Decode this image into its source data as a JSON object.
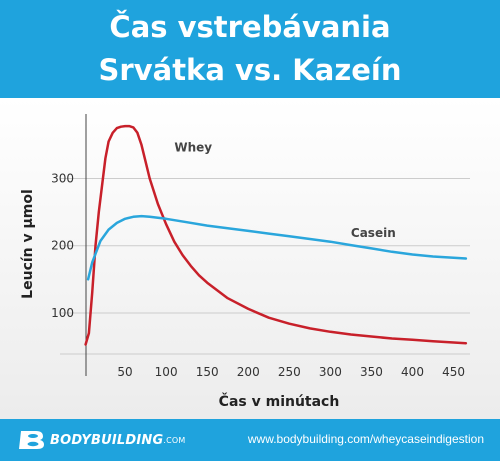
{
  "header": {
    "title_line1": "Čas vstrebávania",
    "title_line2": "Srvátka vs. Kazeín"
  },
  "footer": {
    "brand": "BODYBUILDING",
    "brand_suffix": ".COM",
    "url": "www.bodybuilding.com/wheycaseindigestion"
  },
  "colors": {
    "accent": "#1fa3dd",
    "whey": "#c8202a",
    "casein": "#2aa6dc",
    "grid": "#cccccc"
  },
  "chart_data": {
    "type": "line",
    "title": "",
    "xlabel": "Čas v minútach",
    "ylabel": "Leucín v µmol",
    "xlim": [
      0,
      470
    ],
    "ylim": [
      30,
      390
    ],
    "x_ticks": [
      50,
      100,
      150,
      200,
      250,
      300,
      350,
      400,
      450
    ],
    "y_ticks": [
      100,
      200,
      300
    ],
    "grid": "horizontal",
    "series": [
      {
        "name": "Whey",
        "color": "#c8202a",
        "label_at": [
          110,
          340
        ],
        "points": [
          [
            2,
            53
          ],
          [
            6,
            70
          ],
          [
            10,
            130
          ],
          [
            14,
            200
          ],
          [
            18,
            250
          ],
          [
            22,
            290
          ],
          [
            26,
            330
          ],
          [
            30,
            355
          ],
          [
            35,
            368
          ],
          [
            40,
            375
          ],
          [
            45,
            377
          ],
          [
            50,
            378
          ],
          [
            55,
            378
          ],
          [
            60,
            376
          ],
          [
            65,
            368
          ],
          [
            70,
            350
          ],
          [
            75,
            325
          ],
          [
            80,
            300
          ],
          [
            90,
            262
          ],
          [
            100,
            232
          ],
          [
            110,
            206
          ],
          [
            120,
            186
          ],
          [
            130,
            170
          ],
          [
            140,
            156
          ],
          [
            150,
            145
          ],
          [
            175,
            122
          ],
          [
            200,
            106
          ],
          [
            225,
            93
          ],
          [
            250,
            84
          ],
          [
            275,
            77
          ],
          [
            300,
            72
          ],
          [
            325,
            68
          ],
          [
            350,
            65
          ],
          [
            375,
            62
          ],
          [
            400,
            60
          ],
          [
            425,
            58
          ],
          [
            450,
            56
          ],
          [
            465,
            55
          ]
        ]
      },
      {
        "name": "Casein",
        "color": "#2aa6dc",
        "label_at": [
          325,
          213
        ],
        "points": [
          [
            5,
            150
          ],
          [
            10,
            175
          ],
          [
            20,
            207
          ],
          [
            30,
            224
          ],
          [
            40,
            234
          ],
          [
            50,
            240
          ],
          [
            60,
            243
          ],
          [
            70,
            244
          ],
          [
            80,
            243
          ],
          [
            100,
            240
          ],
          [
            125,
            235
          ],
          [
            150,
            230
          ],
          [
            175,
            226
          ],
          [
            200,
            222
          ],
          [
            225,
            218
          ],
          [
            250,
            214
          ],
          [
            275,
            210
          ],
          [
            300,
            206
          ],
          [
            325,
            201
          ],
          [
            350,
            196
          ],
          [
            375,
            191
          ],
          [
            400,
            187
          ],
          [
            425,
            184
          ],
          [
            450,
            182
          ],
          [
            465,
            181
          ]
        ]
      }
    ]
  }
}
